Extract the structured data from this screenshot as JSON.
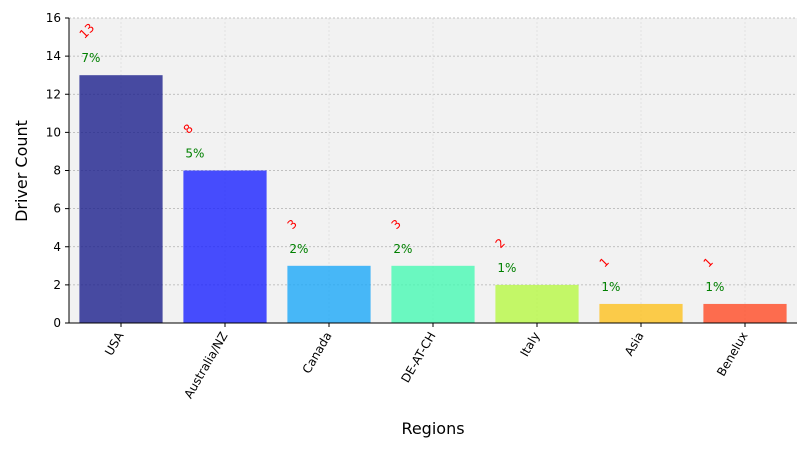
{
  "chart_data": {
    "type": "bar",
    "title": "",
    "xlabel": "Regions",
    "ylabel": "Driver Count",
    "categories": [
      "USA",
      "Australia/NZ",
      "Canada",
      "DE-AT-CH",
      "Italy",
      "Asia",
      "Benelux"
    ],
    "values": [
      13,
      8,
      3,
      3,
      2,
      1,
      1
    ],
    "count_labels": [
      "13",
      "8",
      "3",
      "3",
      "2",
      "1",
      "1"
    ],
    "percent_labels": [
      "7%",
      "5%",
      "2%",
      "2%",
      "1%",
      "1%",
      "1%"
    ],
    "bar_colors": [
      "#1c1f8c",
      "#1a22ff",
      "#1ba8f7",
      "#47f9b3",
      "#b7f843",
      "#fcc01e",
      "#ff4a24"
    ],
    "bar_opacity": 0.8,
    "count_label_color": "#ff0000",
    "percent_label_color": "#008000",
    "plot_background": "#f2f2f2",
    "ylim": [
      0,
      16
    ],
    "yticks": [
      0,
      2,
      4,
      6,
      8,
      10,
      12,
      14,
      16
    ],
    "grid": true
  }
}
